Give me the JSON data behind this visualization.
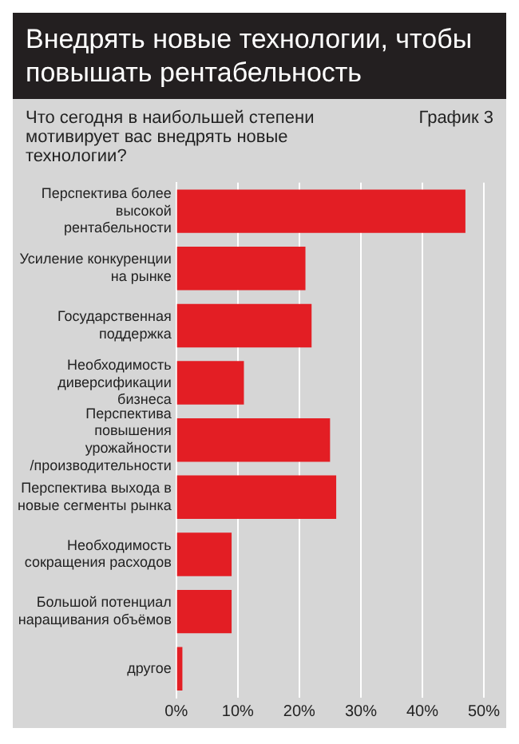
{
  "chart_data": {
    "type": "bar",
    "orientation": "horizontal",
    "title": "Внедрять новые технологии, чтобы повышать рентабельность",
    "subtitle": "Что сегодня в наибольшей степени мотивирует вас внедрять новые технологии?",
    "annotations": [
      "График 3"
    ],
    "categories": [
      "Перспектива более высокой рентабельности",
      "Усиление конкуренции на рынке",
      "Государственная поддержка",
      "Необходимость диверсификации бизнеса",
      "Перспектива повышения урожайности /производительности",
      "Перспектива выхода в новые сегменты рынка",
      "Необходимость сокращения расходов",
      "Большой потенциал наращивания объёмов",
      "другое"
    ],
    "values": [
      47,
      21,
      22,
      11,
      25,
      26,
      9,
      9,
      1
    ],
    "color": "#e31e24",
    "xlim": [
      0,
      50
    ],
    "xticks": [
      {
        "value": 0,
        "label": "0%"
      },
      {
        "value": 10,
        "label": "10%"
      },
      {
        "value": 20,
        "label": "20%"
      },
      {
        "value": 30,
        "label": "30%"
      },
      {
        "value": 40,
        "label": "40%"
      },
      {
        "value": 50,
        "label": "50%"
      }
    ],
    "grid": "x"
  }
}
